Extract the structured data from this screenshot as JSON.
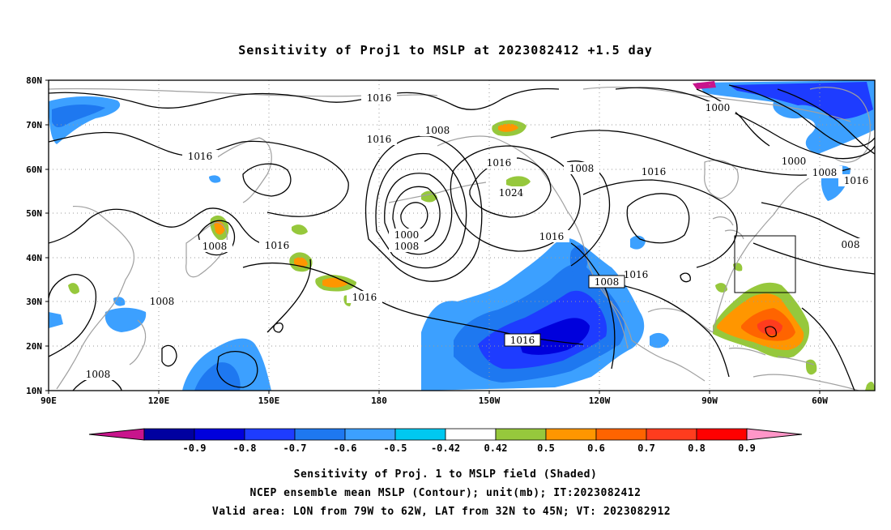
{
  "title": "Sensitivity of Proj1 to MSLP at 2023082412 +1.5 day",
  "map": {
    "lat_ticks": [
      "80N",
      "70N",
      "60N",
      "50N",
      "40N",
      "30N",
      "20N",
      "10N"
    ],
    "lon_ticks": [
      "90E",
      "120E",
      "150E",
      "180",
      "150W",
      "120W",
      "90W",
      "60W"
    ],
    "grid": "dotted",
    "valid_box": {
      "lon_from": "79W",
      "lon_to": "62W",
      "lat_from": "32N",
      "lat_to": "45N"
    }
  },
  "contour_labels": [
    {
      "id": "c1",
      "text": "1016"
    },
    {
      "id": "c2",
      "text": "1008"
    },
    {
      "id": "c3",
      "text": "1016"
    },
    {
      "id": "c4",
      "text": "1016"
    },
    {
      "id": "c5",
      "text": "1024"
    },
    {
      "id": "c6",
      "text": "1000"
    },
    {
      "id": "c7",
      "text": "1008"
    },
    {
      "id": "c8",
      "text": "1016"
    },
    {
      "id": "c9",
      "text": "1008"
    },
    {
      "id": "c10",
      "text": "1016"
    },
    {
      "id": "c11",
      "text": "1000"
    },
    {
      "id": "c12",
      "text": "1000"
    },
    {
      "id": "c13",
      "text": "1008"
    },
    {
      "id": "c14",
      "text": "1016"
    },
    {
      "id": "c15",
      "text": "1016"
    },
    {
      "id": "c16",
      "text": "1016"
    },
    {
      "id": "c17",
      "text": "1008"
    },
    {
      "id": "c18",
      "text": "1016"
    },
    {
      "id": "c19",
      "text": "1008"
    },
    {
      "id": "c20",
      "text": "1016"
    },
    {
      "id": "c21",
      "text": "1016"
    },
    {
      "id": "c22",
      "text": "1008"
    },
    {
      "id": "c23",
      "text": "1008"
    },
    {
      "id": "c24",
      "text": "008"
    }
  ],
  "colorbar": {
    "labels": [
      "-0.9",
      "-0.8",
      "-0.7",
      "-0.6",
      "-0.5",
      "-0.42",
      "0.42",
      "0.5",
      "0.6",
      "0.7",
      "0.8",
      "0.9"
    ],
    "colors": [
      "#c8148c",
      "#0000a0",
      "#0000dc",
      "#1e3cff",
      "#1e78f0",
      "#3ca0ff",
      "#00c8f0",
      "#ffffff",
      "#96c83c",
      "#ff9600",
      "#ff6400",
      "#ff3c1e",
      "#ff0000",
      "#ff96c8"
    ]
  },
  "captions": {
    "line1": "Sensitivity of Proj. 1 to MSLP field (Shaded)",
    "line2": "NCEP ensemble mean MSLP (Contour); unit(mb); IT:2023082412",
    "line3": "Valid area: LON from 79W to 62W, LAT from 32N to 45N; VT: 2023082912"
  }
}
